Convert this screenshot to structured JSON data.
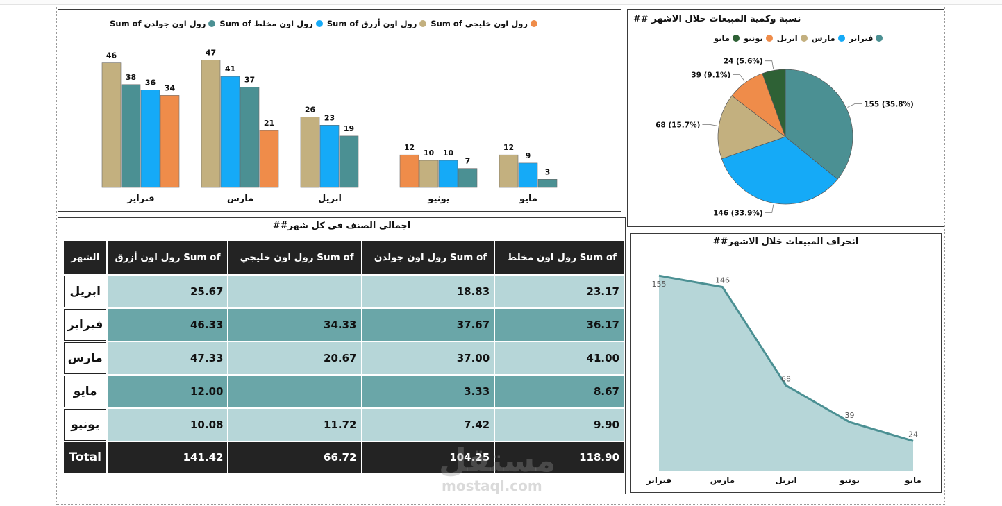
{
  "bar_chart": {
    "legend": [
      "Sum of رول اون خليجي",
      "Sum of رول اون أزرق",
      "Sum of رول اون مخلط",
      "Sum of رول اون جولدن"
    ],
    "chart_data": {
      "type": "bar",
      "categories": [
        "فبراير",
        "مارس",
        "ابريل",
        "يونيو",
        "مايو"
      ],
      "series": [
        {
          "name": "Sum of رول اون خليجي",
          "color": "#ef8c4a",
          "values": [
            null,
            null,
            null,
            12,
            null
          ]
        },
        {
          "name": "Sum of رول اون أزرق",
          "color": "#c3b07f",
          "values": [
            46,
            47,
            26,
            10,
            12
          ]
        },
        {
          "name": "Sum of رول اون مخلط",
          "color": "#15aaf7",
          "values": [
            36,
            41,
            23,
            10,
            9
          ]
        },
        {
          "name": "Sum of رول اون جولدن",
          "color": "#4b9093",
          "values": [
            38,
            37,
            19,
            7,
            3
          ]
        }
      ],
      "extra_bars": [
        {
          "category": "فبراير",
          "color": "#ef8c4a",
          "value": 34
        },
        {
          "category": "مارس",
          "color": "#ef8c4a",
          "value": 21
        }
      ],
      "bar_order": [
        [
          {
            "c": "#c3b07f",
            "v": 46
          },
          {
            "c": "#4b9093",
            "v": 38
          },
          {
            "c": "#15aaf7",
            "v": 36
          },
          {
            "c": "#ef8c4a",
            "v": 34
          }
        ],
        [
          {
            "c": "#c3b07f",
            "v": 47
          },
          {
            "c": "#15aaf7",
            "v": 41
          },
          {
            "c": "#4b9093",
            "v": 37
          },
          {
            "c": "#ef8c4a",
            "v": 21
          }
        ],
        [
          {
            "c": "#c3b07f",
            "v": 26
          },
          {
            "c": "#15aaf7",
            "v": 23
          },
          {
            "c": "#4b9093",
            "v": 19
          }
        ],
        [
          {
            "c": "#ef8c4a",
            "v": 12
          },
          {
            "c": "#c3b07f",
            "v": 10
          },
          {
            "c": "#15aaf7",
            "v": 10
          },
          {
            "c": "#4b9093",
            "v": 7
          }
        ],
        [
          {
            "c": "#c3b07f",
            "v": 12
          },
          {
            "c": "#15aaf7",
            "v": 9
          },
          {
            "c": "#4b9093",
            "v": 3
          }
        ]
      ],
      "ylim": [
        0,
        50
      ]
    }
  },
  "pie_chart": {
    "title": "نسبة وكمية المبيعات خلال الاشهر ##",
    "legend": [
      "فبراير",
      "مارس",
      "ابريل",
      "يونيو",
      "مايو"
    ],
    "chart_data": {
      "type": "pie",
      "labels": [
        "فبراير",
        "مارس",
        "ابريل",
        "يونيو",
        "مايو"
      ],
      "values": [
        155,
        146,
        68,
        39,
        24
      ],
      "percent_labels": [
        "155 (35.8%)",
        "146 (33.9%)",
        "68 (15.7%)",
        "39 (9.1%)",
        "24 (5.6%)"
      ],
      "colors": [
        "#4b9093",
        "#15aaf7",
        "#c3b07f",
        "#ef8c4a",
        "#2e6135"
      ]
    }
  },
  "table": {
    "title": "اجمالي الصنف في كل شهر##",
    "headers": [
      "الشهر",
      "Sum of رول اون أزرق",
      "Sum of رول اون خليجي",
      "Sum of رول اون جولدن",
      "Sum of رول اون مخلط"
    ],
    "rows": [
      {
        "month": "ابريل",
        "cells": [
          "25.67",
          "",
          "18.83",
          "23.17"
        ]
      },
      {
        "month": "فبراير",
        "cells": [
          "46.33",
          "34.33",
          "37.67",
          "36.17"
        ]
      },
      {
        "month": "مارس",
        "cells": [
          "47.33",
          "20.67",
          "37.00",
          "41.00"
        ]
      },
      {
        "month": "مايو",
        "cells": [
          "12.00",
          "",
          "3.33",
          "8.67"
        ]
      },
      {
        "month": "يونيو",
        "cells": [
          "10.08",
          "11.72",
          "7.42",
          "9.90"
        ]
      }
    ],
    "total": {
      "label": "Total",
      "cells": [
        "141.42",
        "66.72",
        "104.25",
        "118.90"
      ]
    }
  },
  "area_chart": {
    "title": "انحراف المبيعات خلال الاشهر##",
    "chart_data": {
      "type": "area",
      "categories": [
        "فبراير",
        "مارس",
        "ابريل",
        "يونيو",
        "مايو"
      ],
      "values": [
        155,
        146,
        68,
        39,
        24
      ],
      "ylim": [
        0,
        165
      ],
      "color": "#4b9093",
      "fill": "#b6d6d8"
    }
  },
  "watermark": {
    "logo": "مستقل",
    "site": "mostaql.com"
  }
}
